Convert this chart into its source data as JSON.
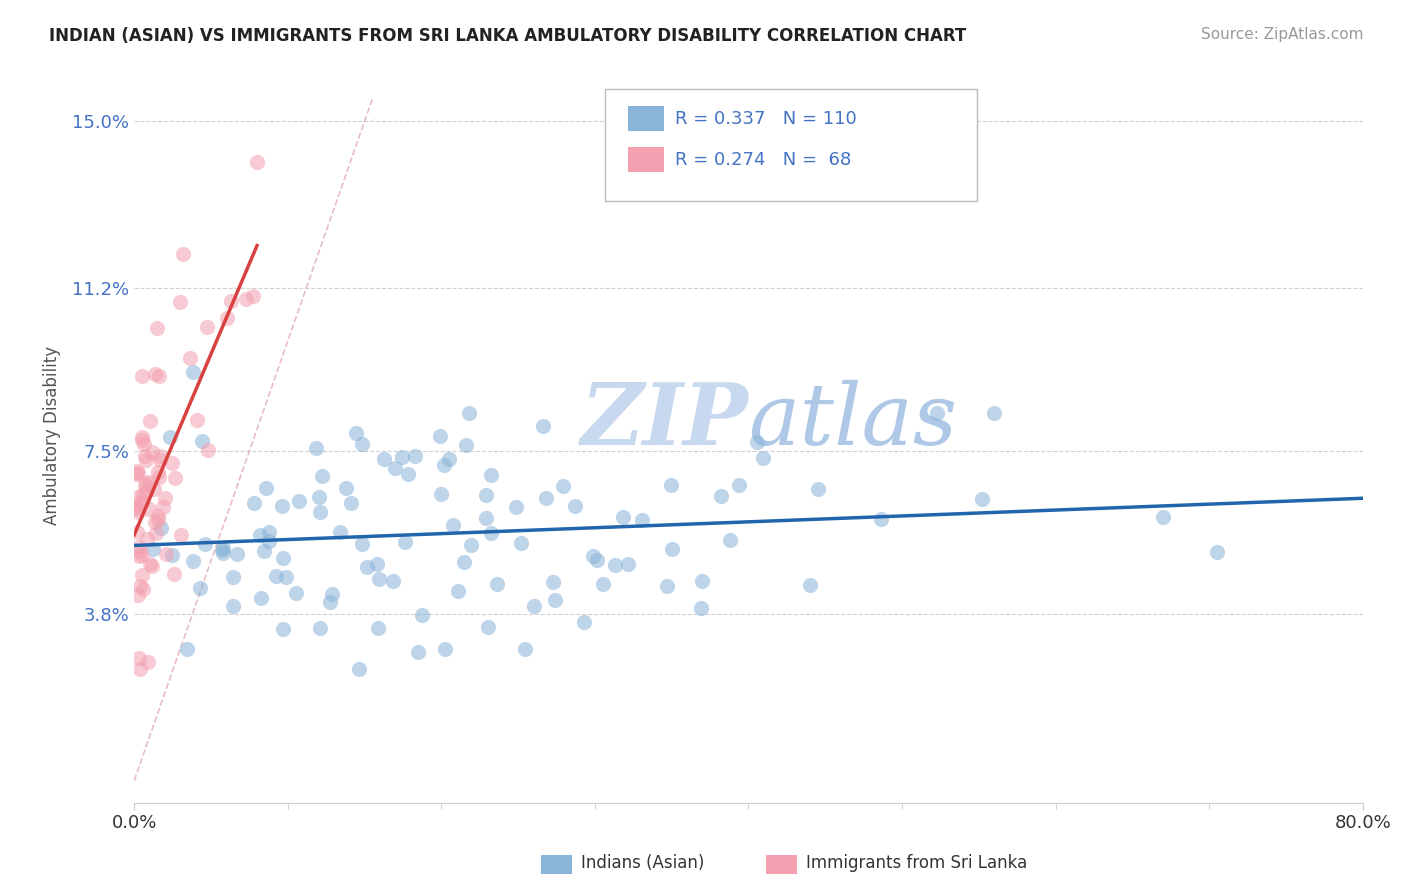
{
  "title": "INDIAN (ASIAN) VS IMMIGRANTS FROM SRI LANKA AMBULATORY DISABILITY CORRELATION CHART",
  "source": "Source: ZipAtlas.com",
  "ylabel": "Ambulatory Disability",
  "xmin": 0.0,
  "xmax": 0.8,
  "ymin": -0.005,
  "ymax": 0.162,
  "yticks": [
    0.038,
    0.075,
    0.112,
    0.15
  ],
  "ytick_labels": [
    "3.8%",
    "7.5%",
    "11.2%",
    "15.0%"
  ],
  "color_blue": "#8ab4d8",
  "color_pink": "#f4a0b0",
  "line_color_blue": "#2166ac",
  "line_color_pink": "#d94040",
  "diag_color": "#e0a0a8",
  "watermark_color": "#c8d8ee",
  "background_color": "#ffffff",
  "grid_color": "#d0d0d0",
  "r1": 0.337,
  "n1": 110,
  "r2": 0.274,
  "n2": 68,
  "seed": 42,
  "dot_size": 120,
  "dot_alpha": 0.55
}
